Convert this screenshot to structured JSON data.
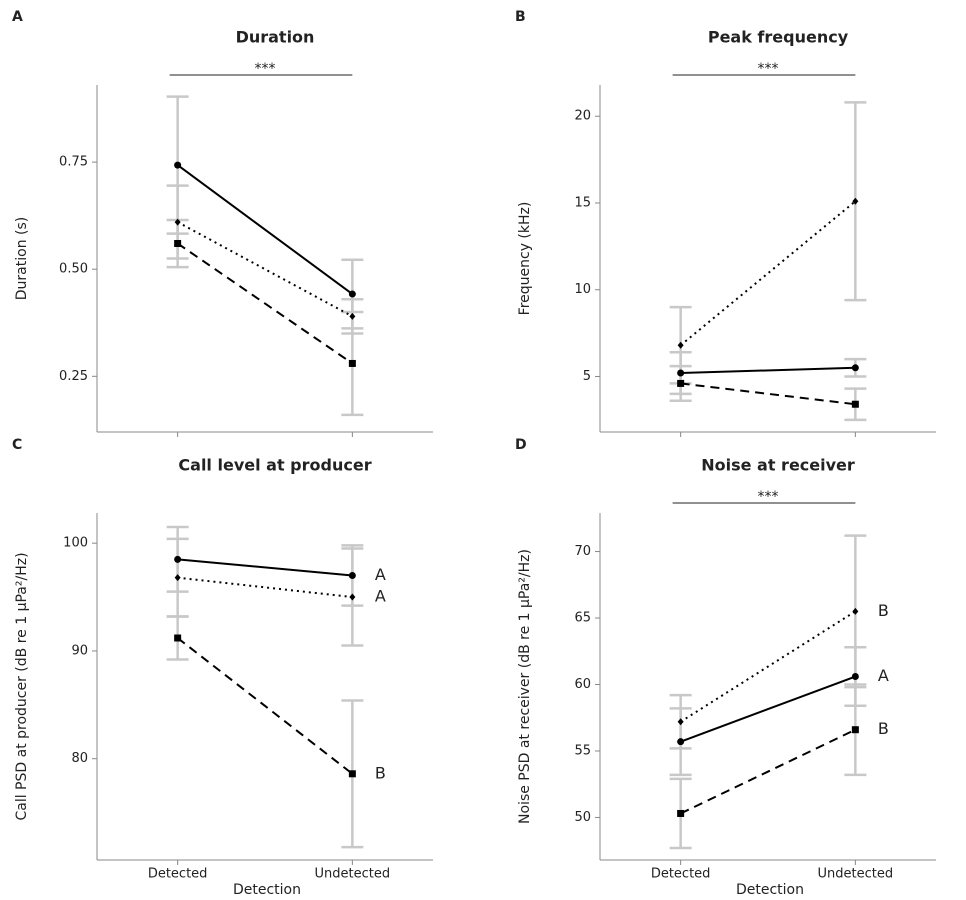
{
  "chart_data": [
    {
      "type": "line",
      "panel_label": "A",
      "title": "Duration",
      "y_label": "Duration (s)",
      "categories": [
        null,
        null
      ],
      "ylim": [
        0.12,
        0.93
      ],
      "yticks": [
        0.25,
        {
          "value": 0.5,
          "label": "0.50"
        },
        0.75
      ],
      "annotation": "***",
      "series": [
        {
          "color": "#000000",
          "style": "solid",
          "marker": "circle",
          "values": [
            0.743,
            0.442
          ],
          "errors": [
            0.16,
            0.08
          ]
        },
        {
          "color": "#000000",
          "style": "dotted",
          "marker": "diamond",
          "values": [
            0.61,
            0.39
          ],
          "errors": [
            0.085,
            0.04
          ]
        },
        {
          "color": "#000000",
          "style": "dashed",
          "marker": "square",
          "values": [
            0.56,
            0.28
          ],
          "errors": [
            0.055,
            0.12
          ]
        }
      ]
    },
    {
      "type": "line",
      "panel_label": "B",
      "title": "Peak frequency",
      "y_label": "Frequency (kHz)",
      "categories": [
        null,
        null
      ],
      "ylim": [
        1.8,
        21.8
      ],
      "yticks": [
        5,
        10,
        15,
        20
      ],
      "annotation": "***",
      "series": [
        {
          "color": "#000000",
          "style": "solid",
          "marker": "circle",
          "values": [
            5.2,
            5.5
          ],
          "errors": [
            1.2,
            0.5
          ]
        },
        {
          "color": "#000000",
          "style": "dotted",
          "marker": "diamond",
          "values": [
            6.8,
            15.1
          ],
          "errors": [
            2.2,
            5.7
          ]
        },
        {
          "color": "#000000",
          "style": "dashed",
          "marker": "square",
          "values": [
            4.6,
            3.4
          ],
          "errors": [
            1.0,
            0.9
          ]
        }
      ]
    },
    {
      "type": "line",
      "panel_label": "C",
      "title": "Call level at producer",
      "y_label": "Call PSD at producer (dB re 1 μPa²/Hz)",
      "x_label": "Detection",
      "categories": [
        "Detected",
        "Undetected"
      ],
      "ylim": [
        70.6,
        102.8
      ],
      "yticks": [
        80,
        90,
        100
      ],
      "series": [
        {
          "color": "#000000",
          "style": "solid",
          "marker": "circle",
          "values": [
            98.5,
            97.0
          ],
          "errors": [
            3.0,
            2.8
          ],
          "letter": "A"
        },
        {
          "color": "#000000",
          "style": "dotted",
          "marker": "diamond",
          "values": [
            96.8,
            95.0
          ],
          "errors": [
            3.6,
            4.5
          ],
          "letter": "A"
        },
        {
          "color": "#000000",
          "style": "dashed",
          "marker": "square",
          "values": [
            91.2,
            78.6
          ],
          "errors": [
            2.0,
            6.8
          ],
          "letter": "B"
        }
      ]
    },
    {
      "type": "line",
      "panel_label": "D",
      "title": "Noise at receiver",
      "y_label": "Noise PSD at receiver (dB re 1 μPa²/Hz)",
      "x_label": "Detection",
      "categories": [
        "Detected",
        "Undetected"
      ],
      "ylim": [
        46.8,
        72.9
      ],
      "yticks": [
        50,
        55,
        60,
        65,
        70
      ],
      "annotation": "***",
      "series": [
        {
          "color": "#000000",
          "style": "solid",
          "marker": "circle",
          "values": [
            55.7,
            60.6
          ],
          "errors": [
            2.5,
            2.2
          ],
          "letter": "A"
        },
        {
          "color": "#000000",
          "style": "dotted",
          "marker": "diamond",
          "values": [
            57.2,
            65.5
          ],
          "errors": [
            2.0,
            5.7
          ],
          "letter": "B"
        },
        {
          "color": "#000000",
          "style": "dashed",
          "marker": "square",
          "values": [
            50.3,
            56.6
          ],
          "errors": [
            2.6,
            3.4
          ],
          "letter": "B"
        }
      ]
    }
  ]
}
